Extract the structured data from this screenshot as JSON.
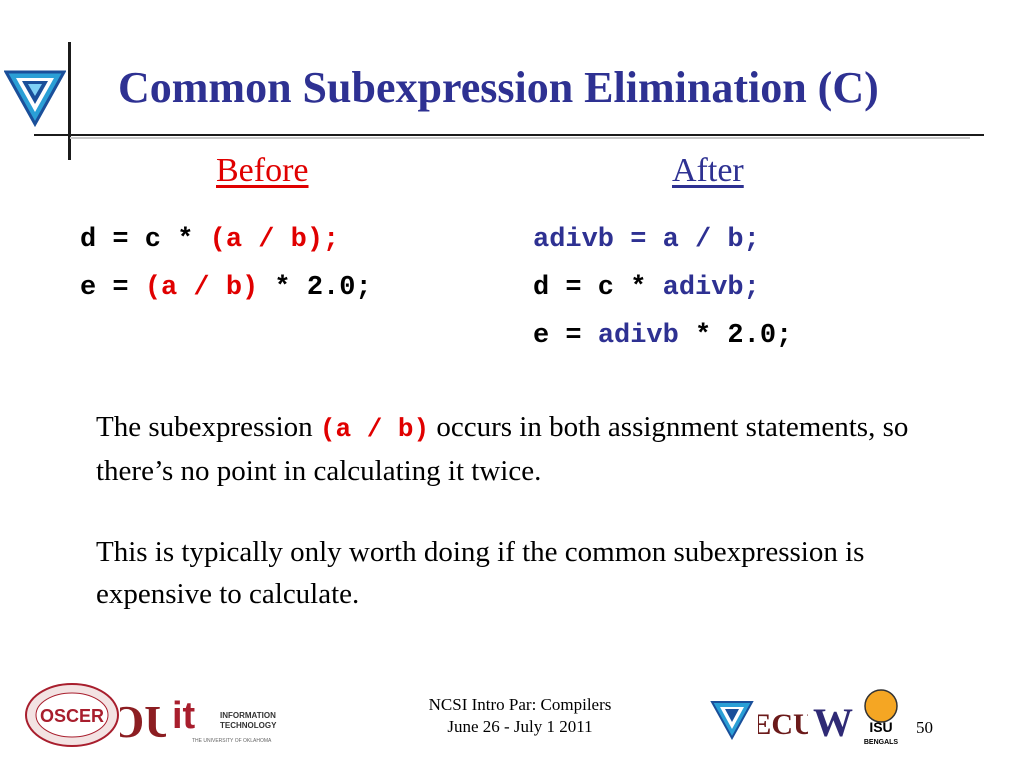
{
  "title": "Common Subexpression Elimination (C)",
  "before": {
    "heading": "Before",
    "lines": [
      [
        {
          "t": "d = c * ",
          "c": "black"
        },
        {
          "t": "(a / b);",
          "c": "red"
        }
      ],
      [
        {
          "t": "e = ",
          "c": "black"
        },
        {
          "t": "(a / b)",
          "c": "red"
        },
        {
          "t": " * 2.0;",
          "c": "black"
        }
      ]
    ]
  },
  "after": {
    "heading": "After",
    "lines": [
      [
        {
          "t": "adivb = a / b;",
          "c": "blue"
        }
      ],
      [
        {
          "t": "d = c * ",
          "c": "black"
        },
        {
          "t": "adivb;",
          "c": "blue"
        }
      ],
      [
        {
          "t": "e = ",
          "c": "black"
        },
        {
          "t": "adivb",
          "c": "blue"
        },
        {
          "t": " * 2.0;",
          "c": "black"
        }
      ]
    ]
  },
  "para1": {
    "pre": "The subexpression ",
    "code": "(a / b)",
    "post": " occurs in both assignment statements, so there’s no point in calculating it twice."
  },
  "para2": "This is typically only worth doing if the common subexpression is expensive to calculate.",
  "footer": {
    "line1": "NCSI Intro Par: Compilers",
    "line2": "June 26 - July 1 2011",
    "slide_number": "50"
  },
  "logos": {
    "oscer": "OSCER",
    "ou": "OU",
    "it": "it",
    "it_sub1": "INFORMATION",
    "it_sub2": "TECHNOLOGY",
    "it_sub3": "THE UNIVERSITY OF OKLAHOMA",
    "ecu": "ECU",
    "w": "W",
    "isu": "ISU",
    "bengals": "BENGALS"
  },
  "colors": {
    "title": "#2e3192",
    "red": "#e00000",
    "blue": "#2e3192"
  }
}
